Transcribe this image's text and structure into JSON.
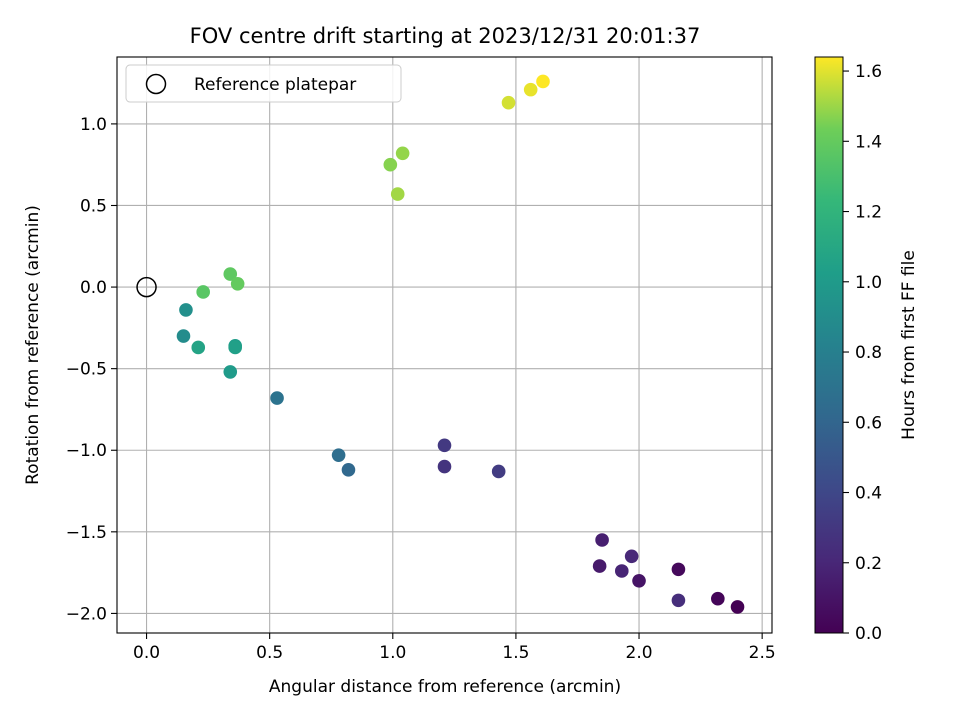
{
  "chart_data": {
    "type": "scatter",
    "title": "FOV centre drift starting at 2023/12/31 20:01:37",
    "xlabel": "Angular distance from reference (arcmin)",
    "ylabel": "Rotation from reference (arcmin)",
    "xlim": [
      -0.12,
      2.54
    ],
    "ylim": [
      -2.12,
      1.41
    ],
    "xticks": [
      0.0,
      0.5,
      1.0,
      1.5,
      2.0,
      2.5
    ],
    "xtick_labels": [
      "0.0",
      "0.5",
      "1.0",
      "1.5",
      "2.0",
      "2.5"
    ],
    "yticks": [
      1.0,
      0.5,
      0.0,
      -0.5,
      -1.0,
      -1.5,
      -2.0
    ],
    "ytick_labels": [
      "1.0",
      "0.5",
      "0.0",
      "−0.5",
      "−1.0",
      "−1.5",
      "−2.0"
    ],
    "grid": true,
    "legend": {
      "placement": "top-left",
      "entries": [
        "Reference platepar"
      ]
    },
    "reference_point": {
      "x": 0.0,
      "y": 0.0,
      "name": "Reference platepar"
    },
    "colorbar": {
      "label": "Hours from first FF file",
      "colormap": "viridis",
      "range": [
        0.0,
        1.64
      ],
      "ticks": [
        0.0,
        0.2,
        0.4,
        0.6,
        0.8,
        1.0,
        1.2,
        1.4,
        1.6
      ],
      "tick_labels": [
        "0.0",
        "0.2",
        "0.4",
        "0.6",
        "0.8",
        "1.0",
        "1.2",
        "1.4",
        "1.6"
      ]
    },
    "points": [
      {
        "x": 2.4,
        "y": -1.96,
        "c": 0.0
      },
      {
        "x": 2.32,
        "y": -1.91,
        "c": 0.02
      },
      {
        "x": 2.16,
        "y": -1.73,
        "c": 0.04
      },
      {
        "x": 2.0,
        "y": -1.8,
        "c": 0.1
      },
      {
        "x": 1.84,
        "y": -1.71,
        "c": 0.13
      },
      {
        "x": 1.85,
        "y": -1.55,
        "c": 0.16
      },
      {
        "x": 1.93,
        "y": -1.74,
        "c": 0.19
      },
      {
        "x": 1.97,
        "y": -1.65,
        "c": 0.21
      },
      {
        "x": 2.16,
        "y": -1.92,
        "c": 0.24
      },
      {
        "x": 1.21,
        "y": -1.1,
        "c": 0.28
      },
      {
        "x": 1.21,
        "y": -0.97,
        "c": 0.31
      },
      {
        "x": 1.43,
        "y": -1.13,
        "c": 0.33
      },
      {
        "x": 0.82,
        "y": -1.12,
        "c": 0.62
      },
      {
        "x": 0.78,
        "y": -1.03,
        "c": 0.66
      },
      {
        "x": 0.53,
        "y": -0.68,
        "c": 0.7
      },
      {
        "x": 0.15,
        "y": -0.3,
        "c": 0.89
      },
      {
        "x": 0.16,
        "y": -0.14,
        "c": 0.92
      },
      {
        "x": 0.34,
        "y": -0.52,
        "c": 1.0
      },
      {
        "x": 0.36,
        "y": -0.36,
        "c": 1.02
      },
      {
        "x": 0.36,
        "y": -0.37,
        "c": 1.04
      },
      {
        "x": 0.21,
        "y": -0.37,
        "c": 1.07
      },
      {
        "x": 0.23,
        "y": -0.03,
        "c": 1.36
      },
      {
        "x": 0.34,
        "y": 0.08,
        "c": 1.38
      },
      {
        "x": 0.37,
        "y": 0.02,
        "c": 1.4
      },
      {
        "x": 0.99,
        "y": 0.75,
        "c": 1.47
      },
      {
        "x": 1.04,
        "y": 0.82,
        "c": 1.49
      },
      {
        "x": 1.02,
        "y": 0.57,
        "c": 1.51
      },
      {
        "x": 1.47,
        "y": 1.13,
        "c": 1.58
      },
      {
        "x": 1.56,
        "y": 1.21,
        "c": 1.61
      },
      {
        "x": 1.61,
        "y": 1.26,
        "c": 1.64
      }
    ]
  }
}
